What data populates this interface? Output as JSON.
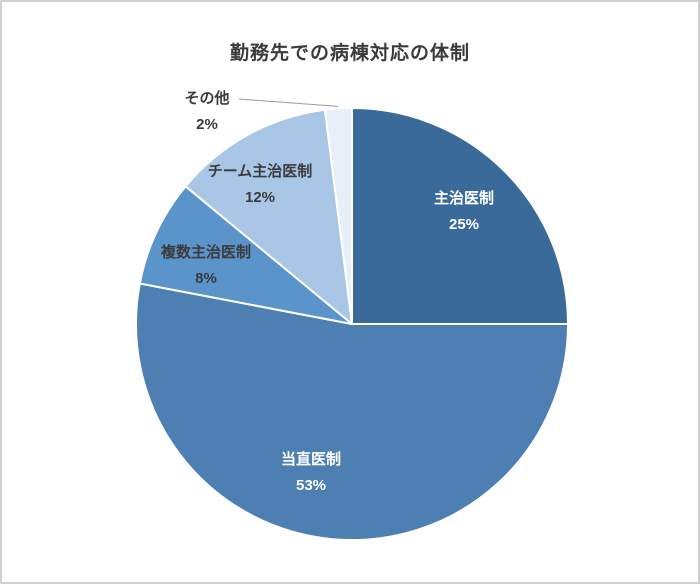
{
  "frame": {
    "background": "#ffffff",
    "border_color": "#d0d0d0"
  },
  "chart_data": {
    "type": "pie",
    "title": "勤務先での病棟対応の体制",
    "title_color": "#3b3b3b",
    "start_angle_deg": 0,
    "direction": "clockwise",
    "slice_border_color": "#ffffff",
    "leader_line_color": "#9b9b9b",
    "segments": [
      {
        "label": "主治医制",
        "value": 25,
        "pct_label": "25%",
        "color": "#3a6a9a",
        "label_color": "#ffffff",
        "label_position": "inside"
      },
      {
        "label": "当直医制",
        "value": 53,
        "pct_label": "53%",
        "color": "#4d7fb2",
        "label_color": "#ffffff",
        "label_position": "inside"
      },
      {
        "label": "複数主治医制",
        "value": 8,
        "pct_label": "8%",
        "color": "#5b93cb",
        "label_color": "#3b3b3b",
        "label_position": "outside"
      },
      {
        "label": "チーム主治医制",
        "value": 12,
        "pct_label": "12%",
        "color": "#a9c6e6",
        "label_color": "#3b3b3b",
        "label_position": "outside"
      },
      {
        "label": "その他",
        "value": 2,
        "pct_label": "2%",
        "color": "#e9eff8",
        "label_color": "#3b3b3b",
        "label_position": "outside",
        "leader_line": true
      }
    ]
  }
}
